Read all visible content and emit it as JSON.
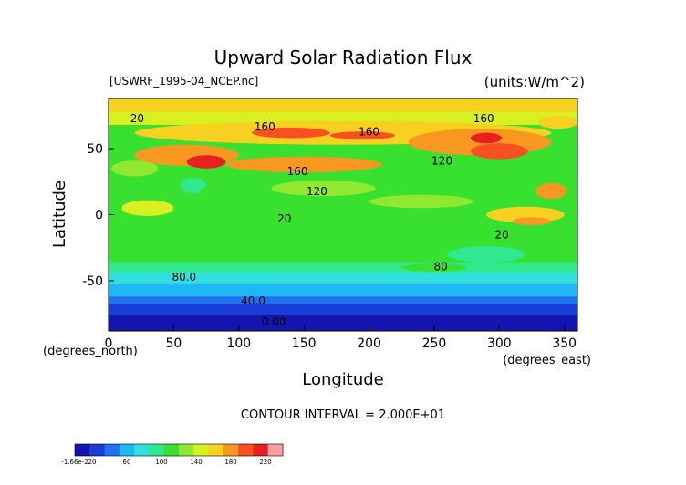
{
  "chart_data": {
    "type": "heatmap",
    "title": "Upward Solar Radiation Flux",
    "file_label": "[USWRF_1995-04_NCEP.nc]",
    "units_label": "(units:W/m^2)",
    "xlabel": "Longitude",
    "ylabel": "Latitude",
    "x_unit_label": "(degrees_east)",
    "y_unit_label": "(degrees_north)",
    "xlim": [
      0,
      360
    ],
    "ylim": [
      -88,
      88
    ],
    "x_ticks": [
      "0",
      "50",
      "100",
      "150",
      "200",
      "250",
      "300",
      "350"
    ],
    "y_ticks": [
      "50",
      "0",
      "-50"
    ],
    "contour_interval_text": "CONTOUR INTERVAL = 2.000E+01",
    "contour_labels": [
      {
        "text": "20",
        "x": 22,
        "y": 70
      },
      {
        "text": "160",
        "x": 120,
        "y": 64
      },
      {
        "text": "160",
        "x": 200,
        "y": 60
      },
      {
        "text": "160",
        "x": 288,
        "y": 70
      },
      {
        "text": "120",
        "x": 256,
        "y": 38
      },
      {
        "text": "160",
        "x": 145,
        "y": 30
      },
      {
        "text": "120",
        "x": 160,
        "y": 15
      },
      {
        "text": "20",
        "x": 135,
        "y": -6
      },
      {
        "text": "20",
        "x": 302,
        "y": -18
      },
      {
        "text": "80",
        "x": 255,
        "y": -42
      },
      {
        "text": "80.0",
        "x": 58,
        "y": -50
      },
      {
        "text": "40.0",
        "x": 111,
        "y": -68
      },
      {
        "text": "0.00",
        "x": 127,
        "y": -84
      }
    ],
    "colorbar": {
      "tick_labels": [
        "-1.66e-2",
        "20",
        "60",
        "100",
        "140",
        "180",
        "220"
      ],
      "tick_values": [
        0,
        20,
        60,
        100,
        140,
        180,
        220
      ],
      "range": [
        0,
        240
      ],
      "colors": [
        "#1414b0",
        "#1a3cd8",
        "#2070f0",
        "#20b8f4",
        "#30e0e0",
        "#30e890",
        "#38e030",
        "#90e830",
        "#d8f020",
        "#f8d020",
        "#f89820",
        "#f85020",
        "#e82020",
        "#f8a0a0"
      ]
    }
  }
}
